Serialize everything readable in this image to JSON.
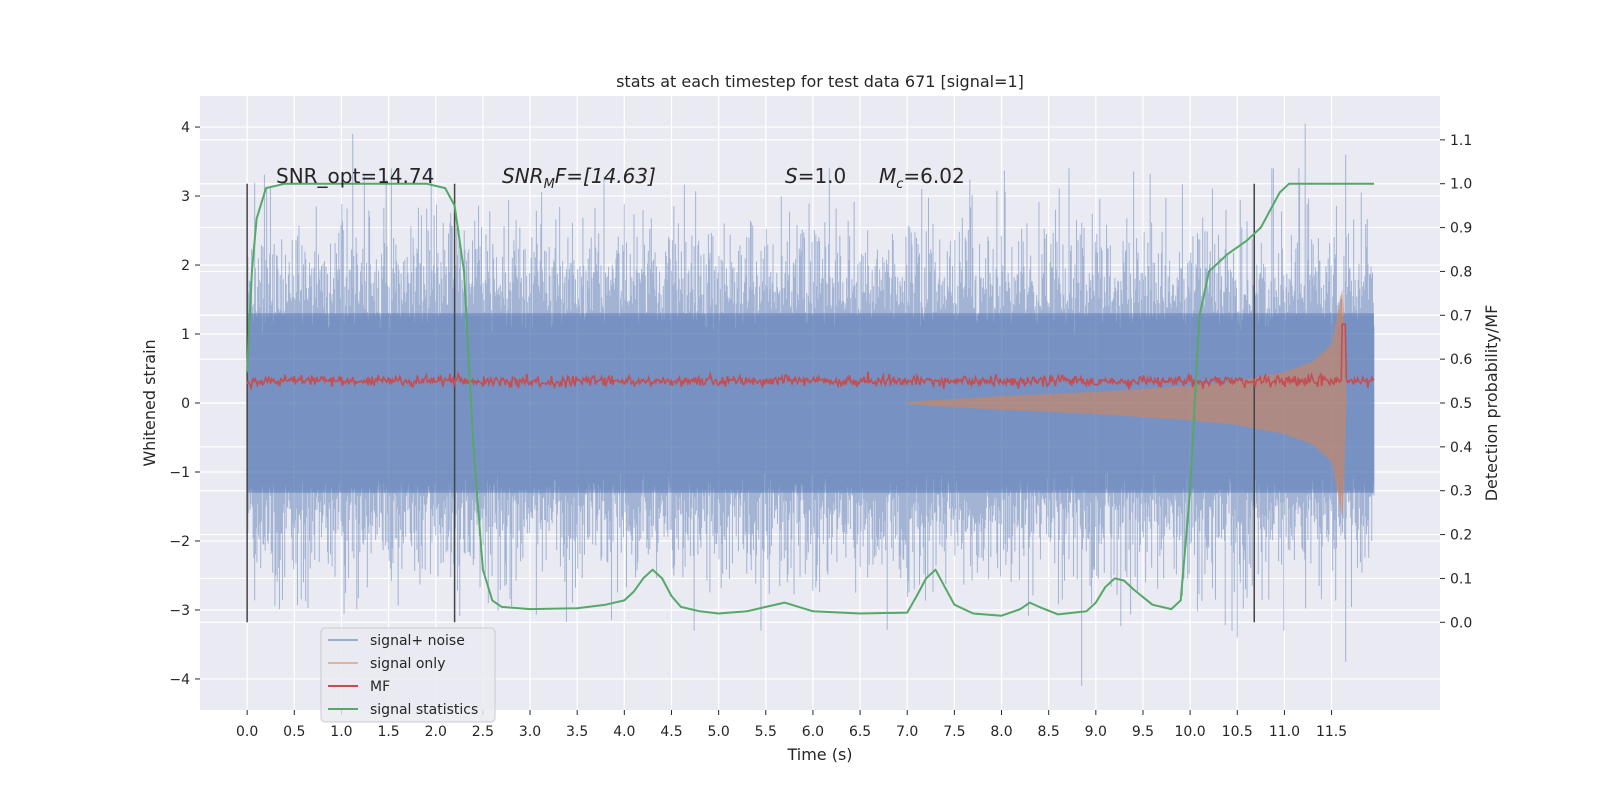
{
  "chart_data": {
    "type": "line",
    "title": "stats at each timestep for test data 671 [signal=1]",
    "xlabel": "Time (s)",
    "ylabel": "Whitened strain",
    "ylabel_right": "Detection probability/MF",
    "xlim": [
      -0.5,
      12.65
    ],
    "ylim": [
      -4.45,
      4.45
    ],
    "ylim_right": [
      -0.2,
      1.2
    ],
    "x_ticks": [
      0.0,
      0.5,
      1.0,
      1.5,
      2.0,
      2.5,
      3.0,
      3.5,
      4.0,
      4.5,
      5.0,
      5.5,
      6.0,
      6.5,
      7.0,
      7.5,
      8.0,
      8.5,
      9.0,
      9.5,
      10.0,
      10.5,
      11.0,
      11.5
    ],
    "x_tick_labels": [
      "0.0",
      "0.5",
      "1.0",
      "1.5",
      "2.0",
      "2.5",
      "3.0",
      "3.5",
      "4.0",
      "4.5",
      "5.0",
      "5.5",
      "6.0",
      "6.5",
      "7.0",
      "7.5",
      "8.0",
      "8.5",
      "9.0",
      "9.5",
      "10.0",
      "10.5",
      "11.0",
      "11.5"
    ],
    "y_ticks": [
      -4,
      -3,
      -2,
      -1,
      0,
      1,
      2,
      3,
      4
    ],
    "y_tick_labels": [
      "−4",
      "−3",
      "−2",
      "−1",
      "0",
      "1",
      "2",
      "3",
      "4"
    ],
    "y_right_ticks": [
      0.0,
      0.1,
      0.2,
      0.3,
      0.4,
      0.5,
      0.6,
      0.7,
      0.8,
      0.9,
      1.0,
      1.1
    ],
    "y_right_tick_labels": [
      "0.0",
      "0.1",
      "0.2",
      "0.3",
      "0.4",
      "0.5",
      "0.6",
      "0.7",
      "0.8",
      "0.9",
      "1.0",
      "1.1"
    ],
    "grid": true,
    "legend_position": "lower-left",
    "annotations": {
      "snr_opt": "SNR_opt=14.74",
      "snr_mf_main": "SNR",
      "snr_mf_sub": "M",
      "snr_mf_rest": "F=[14.63]",
      "s_main": "S",
      "s_rest": "=1.0",
      "mc_main": "M",
      "mc_sub": "c",
      "mc_rest": "=6.02"
    },
    "vertical_markers": [
      0.0,
      2.2,
      10.68
    ],
    "series": [
      {
        "name": "signal+ noise",
        "color": "#4c72b0",
        "x_range": [
          0.0,
          11.95
        ],
        "envelope_typical": 1.3,
        "peaks": [
          [
            1.12,
            3.9
          ],
          [
            11.22,
            4.05
          ],
          [
            11.65,
            3.6
          ],
          [
            8.85,
            -4.1
          ],
          [
            11.65,
            -3.75
          ],
          [
            10.5,
            -3.4
          ]
        ]
      },
      {
        "name": "signal only",
        "color": "#dd8452",
        "x": [
          7.0,
          8.0,
          9.0,
          10.0,
          10.5,
          11.0,
          11.3,
          11.5,
          11.62,
          11.66
        ],
        "amplitude": [
          0.02,
          0.1,
          0.16,
          0.25,
          0.32,
          0.45,
          0.6,
          0.85,
          1.7,
          0.0
        ]
      },
      {
        "name": "MF",
        "color": "#c44e52",
        "x_range": [
          0.0,
          11.95
        ],
        "baseline_right": 0.55,
        "spike_x": 11.63,
        "spike_right": 0.68
      },
      {
        "name": "signal statistics",
        "color": "#55a868",
        "x": [
          0.0,
          0.05,
          0.1,
          0.2,
          0.4,
          0.7,
          1.0,
          1.5,
          1.9,
          2.0,
          2.1,
          2.2,
          2.3,
          2.4,
          2.5,
          2.6,
          2.7,
          3.0,
          3.5,
          3.8,
          4.0,
          4.1,
          4.2,
          4.3,
          4.4,
          4.5,
          4.6,
          4.8,
          5.0,
          5.3,
          5.5,
          5.7,
          6.0,
          6.5,
          7.0,
          7.1,
          7.2,
          7.3,
          7.4,
          7.5,
          7.7,
          8.0,
          8.2,
          8.3,
          8.4,
          8.6,
          8.9,
          9.0,
          9.1,
          9.2,
          9.3,
          9.4,
          9.6,
          9.8,
          9.9,
          10.0,
          10.05,
          10.1,
          10.2,
          10.4,
          10.6,
          10.75,
          10.85,
          10.95,
          11.05,
          11.2,
          11.5,
          11.95
        ],
        "y": [
          0.57,
          0.8,
          0.92,
          0.99,
          1.0,
          1.0,
          1.0,
          1.0,
          1.0,
          0.995,
          0.99,
          0.95,
          0.8,
          0.4,
          0.12,
          0.05,
          0.035,
          0.03,
          0.032,
          0.04,
          0.05,
          0.07,
          0.1,
          0.12,
          0.1,
          0.06,
          0.035,
          0.025,
          0.02,
          0.025,
          0.035,
          0.045,
          0.025,
          0.02,
          0.022,
          0.06,
          0.1,
          0.12,
          0.08,
          0.04,
          0.02,
          0.015,
          0.03,
          0.045,
          0.035,
          0.018,
          0.025,
          0.045,
          0.08,
          0.1,
          0.095,
          0.075,
          0.04,
          0.03,
          0.05,
          0.3,
          0.5,
          0.7,
          0.8,
          0.84,
          0.87,
          0.9,
          0.94,
          0.98,
          1.0,
          1.0,
          1.0,
          1.0
        ]
      }
    ]
  }
}
